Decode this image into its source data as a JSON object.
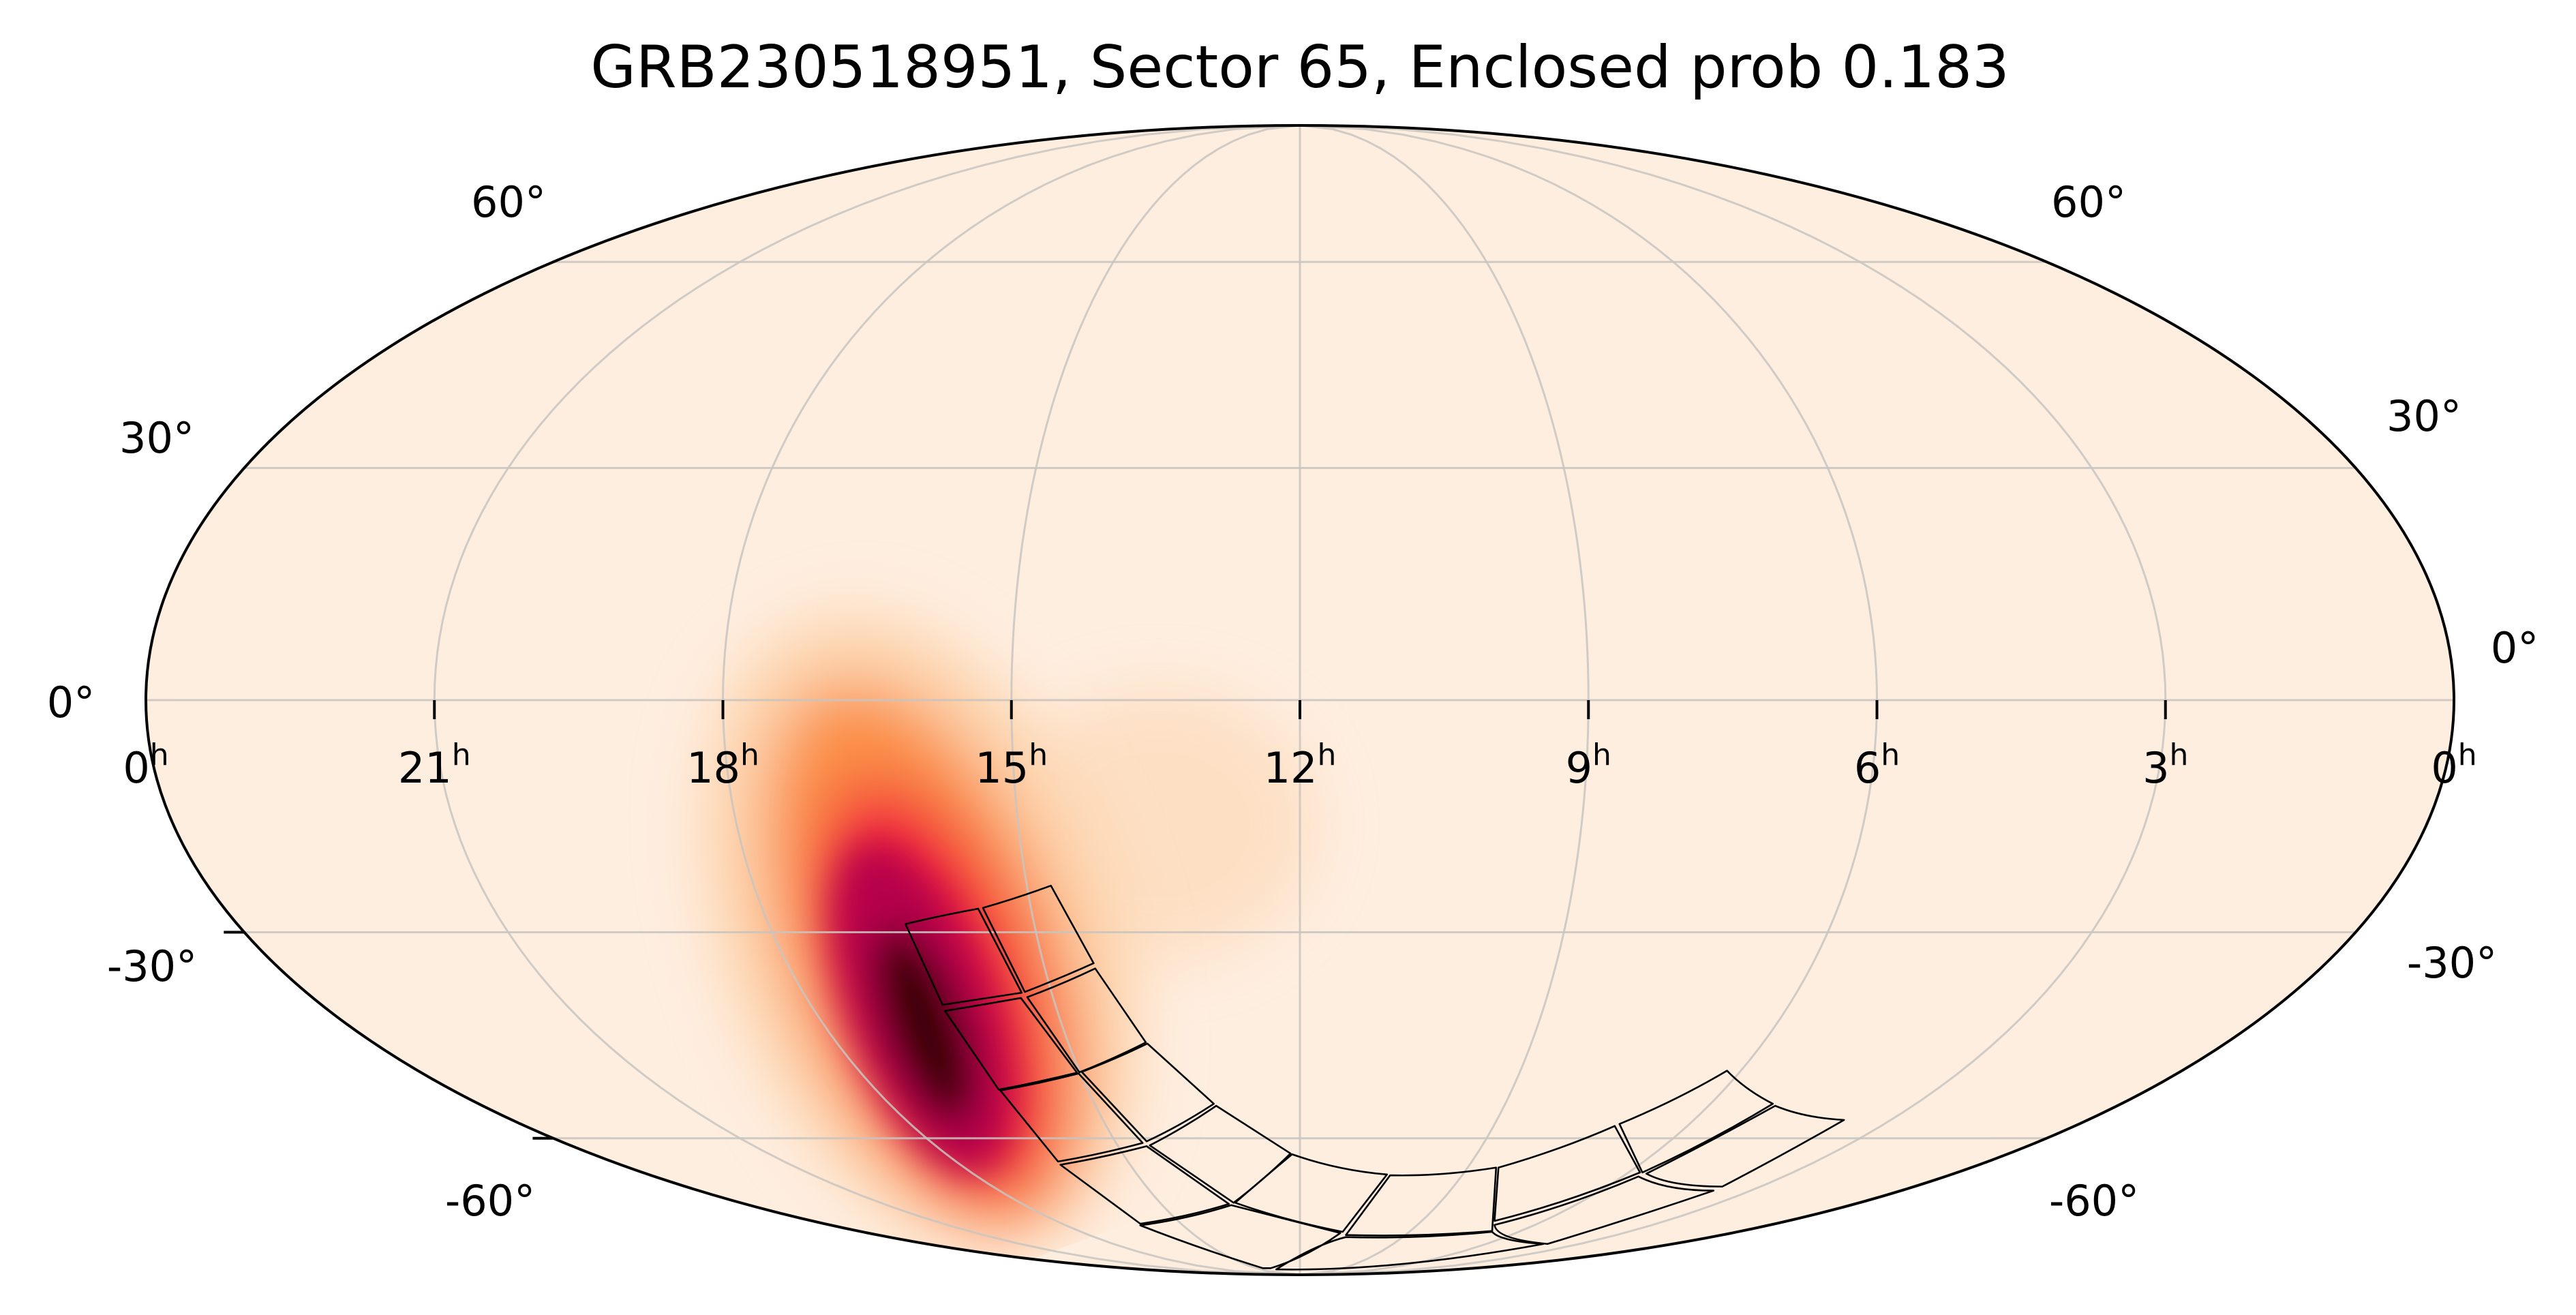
{
  "chart_data": {
    "type": "heatmap",
    "projection": "mollweide",
    "title": "GRB230518951, Sector 65, Enclosed prob 0.183",
    "event": "GRB230518951",
    "sector": 65,
    "enclosed_probability": 0.183,
    "ra_tick_hours": [
      0,
      21,
      18,
      15,
      12,
      9,
      6,
      3,
      0
    ],
    "ra_tick_labels": [
      "0",
      "21",
      "18",
      "15",
      "12",
      "9",
      "6",
      "3",
      "0"
    ],
    "ra_unit_label": "h",
    "dec_ticks": [
      60,
      30,
      0,
      -30,
      -60
    ],
    "dec_tick_labels": [
      "60°",
      "30°",
      "0°",
      "-30°",
      "-60°"
    ],
    "grid": true,
    "colormap": "hot_r",
    "colors": {
      "background": "#feeee0",
      "grid": "#c9c4c0",
      "outline": "#000000",
      "footprint": "#000000"
    },
    "probability_peak": {
      "ra_hours": 16.5,
      "dec_deg": -45
    },
    "secondary_lobe": {
      "ra_hours": 13.5,
      "dec_deg": -12
    }
  }
}
